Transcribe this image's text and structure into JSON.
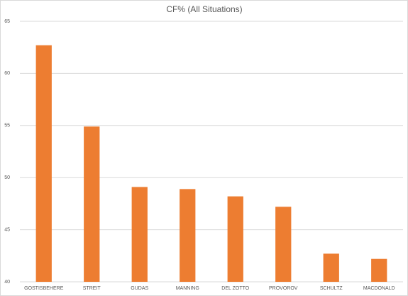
{
  "chart_data": {
    "type": "bar",
    "title": "CF% (All Situations)",
    "categories": [
      "GOSTISBEHERE",
      "STREIT",
      "GUDAS",
      "MANNING",
      "DEL ZOTTO",
      "PROVOROV",
      "SCHULTZ",
      "MACDONALD"
    ],
    "values": [
      62.7,
      54.9,
      49.1,
      48.9,
      48.2,
      47.2,
      42.7,
      42.2
    ],
    "color": "#ed7d31",
    "ylim": [
      40,
      65
    ],
    "yticks": [
      40,
      45,
      50,
      55,
      60,
      65
    ],
    "grid": true
  }
}
